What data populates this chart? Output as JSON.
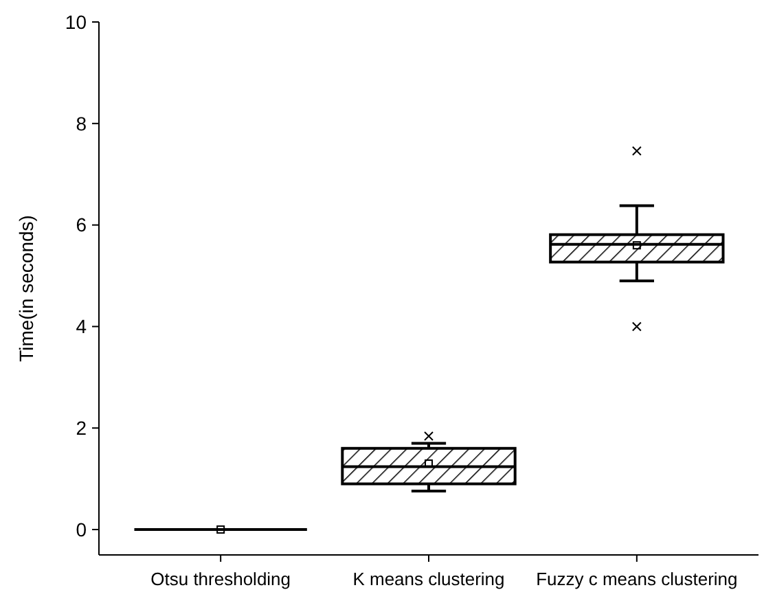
{
  "chart_data": {
    "type": "box",
    "ylabel": "Time(in seconds)",
    "categories": [
      "Otsu thresholding",
      "K means clustering",
      "Fuzzy c means clustering"
    ],
    "boxes": [
      {
        "low": 0,
        "q1": 0,
        "median": 0,
        "q3": 0,
        "high": 0,
        "mean": 0
      },
      {
        "low": 0.76,
        "q1": 0.9,
        "median": 1.24,
        "q3": 1.6,
        "high": 1.7,
        "mean": 1.3,
        "outliers": [
          1.84
        ]
      },
      {
        "low": 4.9,
        "q1": 5.27,
        "median": 5.62,
        "q3": 5.81,
        "high": 6.38,
        "mean": 5.6,
        "outliers": [
          7.46,
          4.0
        ]
      }
    ],
    "color": "#000000",
    "ylim": [
      -0.5,
      10
    ],
    "yticks": [
      0,
      2,
      4,
      6,
      8,
      10
    ],
    "grid": false
  }
}
